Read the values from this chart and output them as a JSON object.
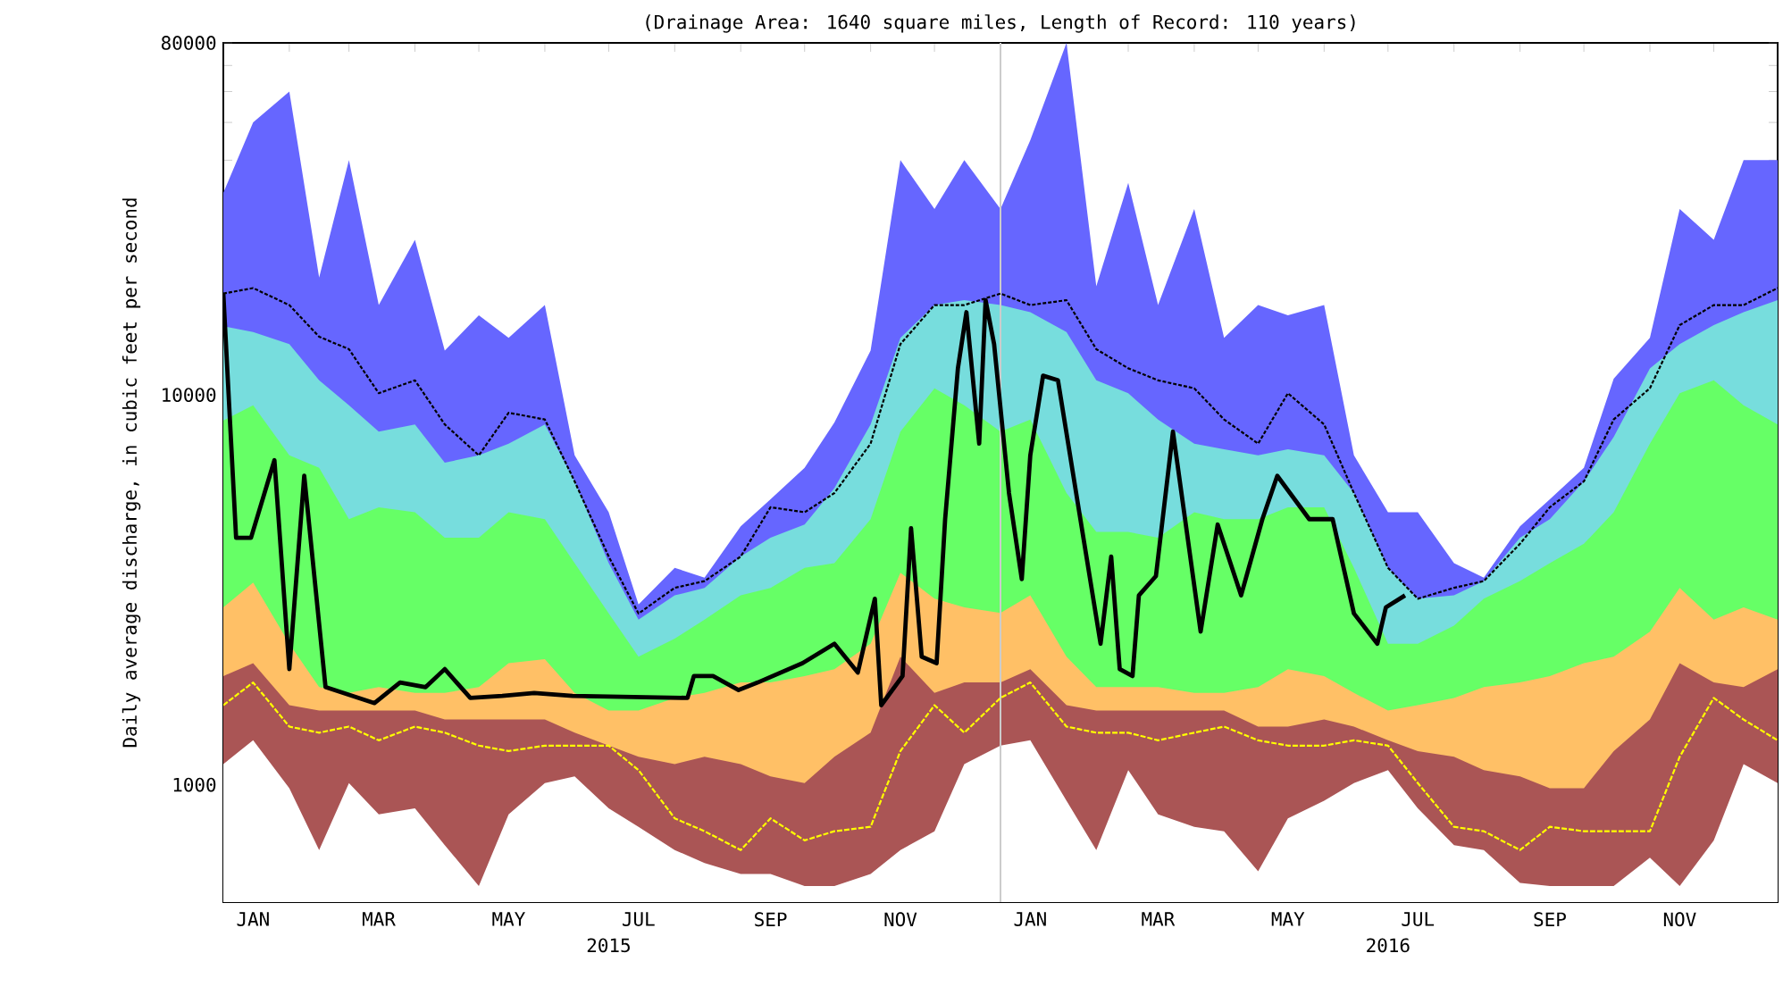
{
  "chart_data": {
    "type": "area",
    "title": "(Drainage Area: 1640 square miles, Length of Record: 110 years)",
    "ylabel": "Daily average discharge, in cubic feet per second",
    "log": true,
    "xlim": [
      "2015-01-01",
      "2016-12-31"
    ],
    "ylim": [
      500,
      80000
    ],
    "yticks": [
      {
        "value": 600,
        "label": null
      },
      {
        "value": 700,
        "label": null
      },
      {
        "value": 800,
        "label": null
      },
      {
        "value": 900,
        "label": null
      },
      1000,
      {
        "value": 2000,
        "label": null
      },
      {
        "value": 3000,
        "label": null
      },
      {
        "value": 4000,
        "label": null
      },
      {
        "value": 5000,
        "label": null
      },
      {
        "value": 6000,
        "label": null
      },
      {
        "value": 7000,
        "label": null
      },
      {
        "value": 8000,
        "label": null
      },
      {
        "value": 9000,
        "label": null
      },
      10000,
      {
        "value": 20000,
        "label": null
      },
      {
        "value": 30000,
        "label": null
      },
      {
        "value": 40000,
        "label": null
      },
      {
        "value": 50000,
        "label": null
      },
      {
        "value": 60000,
        "label": null
      },
      {
        "value": 70000,
        "label": null
      },
      80000
    ],
    "xticks": [
      {
        "value": "2015-01-15",
        "label": "JAN"
      },
      {
        "value": "2015-03-15",
        "label": "MAR"
      },
      {
        "value": "2015-05-15",
        "label": "MAY"
      },
      {
        "value": "2015-07-15",
        "label": "JUL"
      },
      {
        "value": "2015-09-15",
        "label": "SEP"
      },
      {
        "value": "2015-11-15",
        "label": "NOV"
      },
      {
        "value": "2016-01-15",
        "label": "JAN"
      },
      {
        "value": "2016-03-15",
        "label": "MAR"
      },
      {
        "value": "2016-05-15",
        "label": "MAY"
      },
      {
        "value": "2016-07-15",
        "label": "JUL"
      },
      {
        "value": "2016-09-15",
        "label": "SEP"
      },
      {
        "value": "2016-11-15",
        "label": "NOV"
      },
      {
        "value": "2015-02-01",
        "label": null
      },
      {
        "value": "2015-03-01",
        "label": null
      },
      {
        "value": "2015-04-01",
        "label": null
      },
      {
        "value": "2015-05-01",
        "label": null
      },
      {
        "value": "2015-06-01",
        "label": null
      },
      {
        "value": "2015-07-01",
        "label": null
      },
      {
        "value": "2015-08-01",
        "label": null
      },
      {
        "value": "2015-09-01",
        "label": null
      },
      {
        "value": "2015-10-01",
        "label": null
      },
      {
        "value": "2015-11-01",
        "label": null
      },
      {
        "value": "2015-12-01",
        "label": null
      },
      {
        "value": "2016-01-01",
        "label": null
      },
      {
        "value": "2016-02-01",
        "label": null
      },
      {
        "value": "2016-03-01",
        "label": null
      },
      {
        "value": "2016-04-01",
        "label": null
      },
      {
        "value": "2016-05-01",
        "label": null
      },
      {
        "value": "2016-06-01",
        "label": null
      },
      {
        "value": "2016-07-01",
        "label": null
      },
      {
        "value": "2016-08-01",
        "label": null
      },
      {
        "value": "2016-09-01",
        "label": null
      },
      {
        "value": "2016-10-01",
        "label": null
      },
      {
        "value": "2016-11-01",
        "label": null
      },
      {
        "value": "2016-12-01",
        "label": null
      }
    ],
    "x2lim": [
      "2015-01-01",
      "2016-12-31"
    ],
    "x2ticks": [
      {
        "value": "2015-07-01",
        "label": "2015"
      },
      {
        "value": "2016-07-01",
        "label": "2016"
      }
    ],
    "ref_lines": [
      {
        "axis": "x",
        "value": "2016-01-01",
        "color": "#cccccc"
      }
    ],
    "x": [
      "2015-01-01",
      "2015-01-15",
      "2015-02-01",
      "2015-02-15",
      "2015-03-01",
      "2015-03-15",
      "2015-04-01",
      "2015-04-15",
      "2015-05-01",
      "2015-05-15",
      "2015-06-01",
      "2015-06-15",
      "2015-07-01",
      "2015-07-15",
      "2015-08-01",
      "2015-08-15",
      "2015-09-01",
      "2015-09-15",
      "2015-10-01",
      "2015-10-15",
      "2015-11-01",
      "2015-11-15",
      "2015-12-01",
      "2015-12-15",
      "2016-01-01",
      "2016-01-15",
      "2016-02-01",
      "2016-02-15",
      "2016-03-01",
      "2016-03-15",
      "2016-04-01",
      "2016-04-15",
      "2016-05-01",
      "2016-05-15",
      "2016-06-01",
      "2016-06-15",
      "2016-07-01",
      "2016-07-15",
      "2016-08-01",
      "2016-08-15",
      "2016-09-01",
      "2016-09-15",
      "2016-10-01",
      "2016-10-15",
      "2016-11-01",
      "2016-11-15",
      "2016-12-01",
      "2016-12-15",
      "2016-12-31"
    ],
    "series": [
      {
        "color": "#6666ff",
        "values": [
          33000,
          50000,
          60000,
          20000,
          40000,
          17000,
          25000,
          13000,
          16000,
          14000,
          17000,
          7000,
          5000,
          2900,
          3600,
          3400,
          4600,
          5400,
          6500,
          8500,
          13000,
          40000,
          30000,
          40000,
          30000,
          45000,
          80000,
          19000,
          35000,
          17000,
          30000,
          14000,
          17000,
          16000,
          17000,
          7000,
          5000,
          5000,
          3700,
          3400,
          4600,
          5400,
          6500,
          11000,
          14000,
          30000,
          25000,
          40000,
          40000
        ]
      },
      {
        "color": "#77dddd",
        "values": [
          15000,
          14500,
          13500,
          10900,
          9400,
          8050,
          8400,
          6700,
          7000,
          7500,
          8400,
          6000,
          3700,
          2650,
          3060,
          3200,
          3850,
          4300,
          4650,
          5770,
          8400,
          14000,
          17000,
          17500,
          17000,
          16300,
          14500,
          10900,
          10100,
          8650,
          7500,
          7250,
          7000,
          7250,
          7000,
          5600,
          3600,
          3000,
          3060,
          3330,
          4300,
          4800,
          6000,
          7800,
          11700,
          13500,
          15100,
          16300,
          17500
        ]
      },
      {
        "color": "#66ff66",
        "values": [
          8600,
          9400,
          7000,
          6500,
          4800,
          5150,
          5000,
          4300,
          4300,
          5000,
          4800,
          3700,
          2750,
          2130,
          2370,
          2650,
          3060,
          3200,
          3600,
          3700,
          4800,
          8050,
          10400,
          9400,
          8050,
          8650,
          5600,
          4450,
          4450,
          4300,
          5000,
          4800,
          4800,
          5150,
          5150,
          3600,
          2300,
          2300,
          2560,
          3000,
          3330,
          3700,
          4150,
          5000,
          7500,
          10100,
          10900,
          9400,
          8400
        ]
      },
      {
        "color": "#ffc066",
        "values": [
          2850,
          3300,
          2300,
          1780,
          1720,
          1780,
          1720,
          1720,
          1780,
          2050,
          2100,
          1720,
          1550,
          1550,
          1670,
          1720,
          1830,
          1830,
          1900,
          1980,
          2300,
          3500,
          3000,
          2850,
          2760,
          3060,
          2130,
          1780,
          1780,
          1780,
          1720,
          1720,
          1780,
          1980,
          1900,
          1720,
          1550,
          1600,
          1670,
          1780,
          1830,
          1900,
          2050,
          2130,
          2470,
          3200,
          2650,
          2850,
          2650
        ]
      },
      {
        "color": "#aa5555",
        "x": [
          "2015-01-01",
          "2015-01-15",
          "2015-02-01",
          "2015-02-15",
          "2015-04-01",
          "2015-04-15",
          "2015-06-01",
          "2015-06-15",
          "2015-07-01",
          "2015-07-15",
          "2015-08-01",
          "2015-08-15",
          "2015-09-01",
          "2015-09-15",
          "2015-10-01",
          "2015-10-15",
          "2015-11-01",
          "2015-11-15",
          "2015-12-01",
          "2015-12-15",
          "2016-01-01",
          "2016-01-15",
          "2016-02-01",
          "2016-02-15",
          "2016-04-15",
          "2016-05-01",
          "2016-05-15",
          "2016-06-01",
          "2016-06-15",
          "2016-07-01",
          "2016-07-15",
          "2016-08-01",
          "2016-08-15",
          "2016-09-01",
          "2016-09-15",
          "2016-10-01",
          "2016-10-15",
          "2016-11-01",
          "2016-11-15",
          "2016-12-01",
          "2016-12-15",
          "2016-12-31"
        ],
        "values": [
          1900,
          2050,
          1600,
          1550,
          1550,
          1470,
          1470,
          1360,
          1260,
          1180,
          1130,
          1180,
          1130,
          1050,
          1010,
          1180,
          1360,
          2130,
          1720,
          1830,
          1830,
          1980,
          1600,
          1550,
          1550,
          1410,
          1410,
          1470,
          1410,
          1300,
          1220,
          1180,
          1090,
          1050,
          980,
          980,
          1220,
          1470,
          2050,
          1830,
          1780,
          1980
        ]
      },
      {
        "color": "#ffffff",
        "values": [
          1130,
          1300,
          980,
          680,
          1010,
          840,
          870,
          700,
          550,
          840,
          1010,
          1050,
          870,
          780,
          680,
          630,
          590,
          590,
          550,
          550,
          590,
          680,
          760,
          1130,
          1260,
          1300,
          910,
          680,
          1090,
          840,
          780,
          760,
          600,
          820,
          910,
          1010,
          1090,
          870,
          700,
          680,
          560,
          550,
          550,
          550,
          650,
          550,
          720,
          1130,
          1010
        ]
      },
      {
        "type": "line",
        "color": "#000000",
        "line_style": "dotted",
        "values": [
          18200,
          18800,
          17000,
          14100,
          13100,
          10100,
          10900,
          8400,
          7000,
          9000,
          8650,
          6000,
          3850,
          2750,
          3200,
          3330,
          3850,
          5150,
          5000,
          5600,
          7500,
          13500,
          17000,
          17000,
          18200,
          17000,
          17500,
          13100,
          11700,
          10900,
          10400,
          8650,
          7500,
          10100,
          8400,
          5600,
          3600,
          3000,
          3200,
          3330,
          4150,
          5150,
          6000,
          8650,
          10400,
          15100,
          17000,
          17000,
          18800
        ]
      },
      {
        "type": "line",
        "color": "#ffff00",
        "line_style": "dashed",
        "values": [
          1600,
          1830,
          1410,
          1360,
          1410,
          1300,
          1410,
          1360,
          1260,
          1220,
          1260,
          1260,
          1260,
          1090,
          820,
          760,
          680,
          820,
          720,
          760,
          780,
          1220,
          1600,
          1360,
          1670,
          1830,
          1410,
          1360,
          1360,
          1300,
          1360,
          1410,
          1300,
          1260,
          1260,
          1300,
          1260,
          1010,
          780,
          760,
          680,
          780,
          760,
          760,
          760,
          1180,
          1670,
          1470,
          1300
        ]
      },
      {
        "type": "line",
        "color": "#000000",
        "line_style": "solid",
        "x": [
          "2015-01-01",
          "2015-01-07",
          "2015-01-14",
          "2015-01-25",
          "2015-02-01",
          "2015-02-08",
          "2015-02-18",
          "2015-03-13",
          "2015-03-25",
          "2015-04-06",
          "2015-04-15",
          "2015-04-27",
          "2015-05-12",
          "2015-05-27",
          "2015-06-14",
          "2015-08-07",
          "2015-08-10",
          "2015-08-19",
          "2015-08-31",
          "2015-09-09",
          "2015-09-30",
          "2015-10-15",
          "2015-10-26",
          "2015-11-03",
          "2015-11-06",
          "2015-11-16",
          "2015-11-20",
          "2015-11-25",
          "2015-12-02",
          "2015-12-06",
          "2015-12-12",
          "2015-12-16",
          "2015-12-22",
          "2015-12-25",
          "2015-12-29",
          "2016-01-05",
          "2016-01-11",
          "2016-01-15",
          "2016-01-21",
          "2016-01-28",
          "2016-02-07",
          "2016-02-17",
          "2016-02-22",
          "2016-02-26",
          "2016-03-03",
          "2016-03-06",
          "2016-03-14",
          "2016-03-22",
          "2016-04-04",
          "2016-04-12",
          "2016-04-23",
          "2016-05-03",
          "2016-05-10",
          "2016-05-25",
          "2016-06-05",
          "2016-06-15",
          "2016-06-26",
          "2016-06-30",
          "2016-07-09"
        ],
        "values": [
          18200,
          4300,
          4300,
          6800,
          1980,
          6200,
          1780,
          1620,
          1830,
          1780,
          1980,
          1670,
          1690,
          1720,
          1690,
          1670,
          1900,
          1900,
          1750,
          1830,
          2050,
          2300,
          1940,
          3000,
          1600,
          1900,
          4550,
          2130,
          2050,
          4800,
          11700,
          16300,
          7500,
          17500,
          13500,
          5600,
          3370,
          7000,
          11200,
          10900,
          5000,
          2300,
          3850,
          1980,
          1900,
          3060,
          3430,
          8050,
          2470,
          4650,
          3060,
          4800,
          6200,
          4800,
          4800,
          2750,
          2300,
          2850,
          3060
        ]
      }
    ]
  }
}
